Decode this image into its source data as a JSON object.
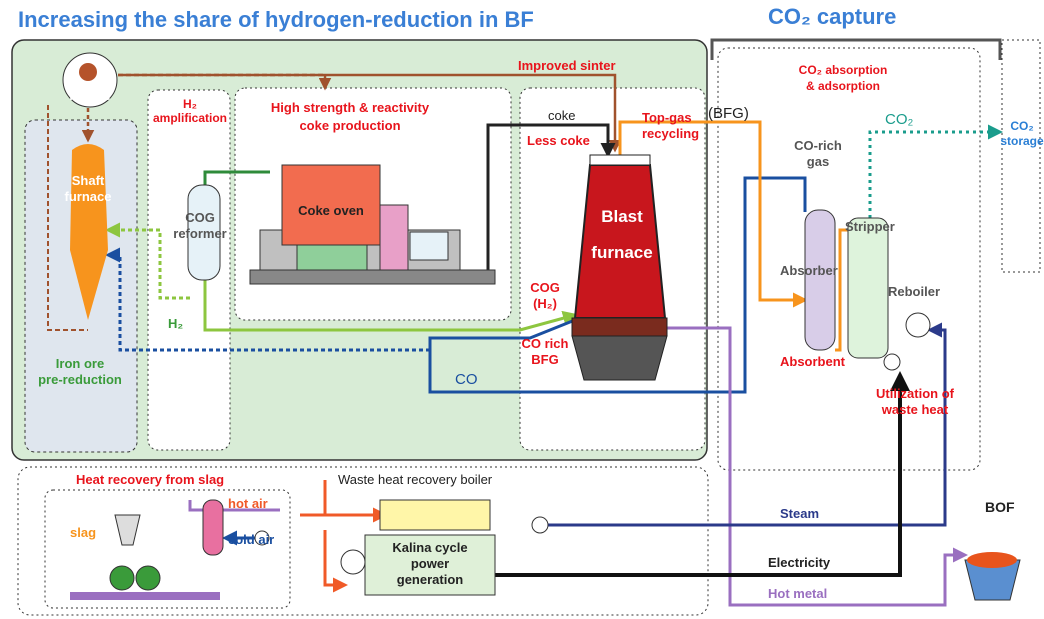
{
  "title": "Increasing the share of hydrogen-reduction in BF",
  "capture_title": "CO₂ capture",
  "labels": {
    "iron_ore": "Iron ore",
    "shaft_furnace": [
      "Shaft",
      "furnace"
    ],
    "pre_reduction": [
      "Iron ore",
      "pre-reduction"
    ],
    "h2_amplification": [
      "H₂",
      "amplification"
    ],
    "cog_reformer": [
      "COG",
      "reformer"
    ],
    "coke_production": [
      "High strength & reactivity",
      "coke production"
    ],
    "coke_oven": "Coke oven",
    "improved_sinter": "Improved sinter",
    "coke": "coke",
    "less_coke": "Less coke",
    "top_gas": [
      "Top-gas",
      "recycling"
    ],
    "bfg": "(BFG)",
    "blast_furnace": [
      "Blast",
      "furnace"
    ],
    "cog_h2": [
      "COG",
      "(H₂)"
    ],
    "co_rich_bfg": [
      "CO rich",
      "BFG"
    ],
    "co": "CO",
    "h2": "H₂",
    "absorption": [
      "CO₂ absorption",
      "& adsorption"
    ],
    "co2": "CO₂",
    "co2_storage": [
      "CO₂",
      "storage"
    ],
    "co_rich_gas": [
      "CO-rich",
      "gas"
    ],
    "absorber": "Absorber",
    "stripper": "Stripper",
    "reboiler": "Reboiler",
    "absorbent": "Absorbent",
    "waste_heat": [
      "Utilization of",
      "waste heat"
    ],
    "slag_recovery": "Heat recovery from slag",
    "slag": "slag",
    "hot_air": "hot air",
    "cold_air": "cold air",
    "boiler": "Waste heat recovery boiler",
    "kalina": [
      "Kalina cycle",
      "power",
      "generation"
    ],
    "steam": "Steam",
    "electricity": "Electricity",
    "hot_metal": "Hot metal",
    "bof": "BOF"
  }
}
